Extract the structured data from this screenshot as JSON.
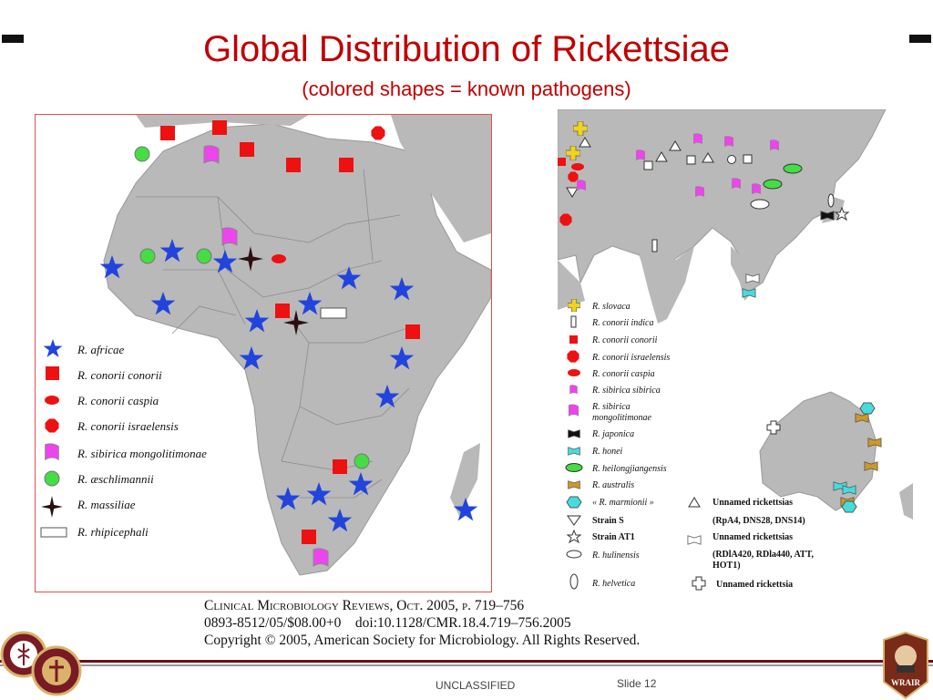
{
  "slide": {
    "title": "Global Distribution of Rickettsiae",
    "subtitle": "(colored shapes = known pathogens)",
    "classification": "UNCLASSIFIED",
    "slide_number": "Slide 12"
  },
  "colors": {
    "title": "#c00000",
    "land": "#b9b9b9",
    "africa_border": "#e05050",
    "star_blue": "#2244dd",
    "red": "#ee1111",
    "magenta": "#ee44ee",
    "green": "#44dd44",
    "cyan": "#44dddd",
    "gold": "#cc9922",
    "bottom_bar": "#6b0f1a"
  },
  "africa_map": {
    "legend": [
      {
        "label": "R. africae",
        "icon": "blue-star-icon"
      },
      {
        "label": "R. conorii conorii",
        "icon": "red-square-icon"
      },
      {
        "label": "R. conorii caspia",
        "icon": "red-oval-icon"
      },
      {
        "label": "R. conorii israelensis",
        "icon": "red-octagon-icon"
      },
      {
        "label": "R. sibirica mongolitimonae",
        "icon": "magenta-flag-icon"
      },
      {
        "label": "R. æschlimannii",
        "icon": "green-circle-icon"
      },
      {
        "label": "R. massiliae",
        "icon": "black-four-point-star-icon"
      },
      {
        "label": "R. rhipicephali",
        "icon": "white-rectangle-icon"
      }
    ]
  },
  "asia_map": {
    "legend_left": [
      {
        "label": "R. slovaca",
        "icon": "yellow-cross-icon"
      },
      {
        "label": "R. conorii indica",
        "icon": "white-bar-icon"
      },
      {
        "label": "R. conorii conorii",
        "icon": "red-square-icon"
      },
      {
        "label": "R. conorii israelensis",
        "icon": "red-octagon-icon"
      },
      {
        "label": "R. conorii caspia",
        "icon": "red-oval-icon"
      },
      {
        "label": "R. sibirica sibirica",
        "icon": "magenta-flag-icon"
      },
      {
        "label": "R. sibirica",
        "label2": "mongolitimonae",
        "icon": "magenta-flag-tall-icon"
      },
      {
        "label": "R. japonica",
        "icon": "black-bowtie-icon"
      },
      {
        "label": "R. honei",
        "icon": "cyan-bowtie-icon"
      },
      {
        "label": "R. heilongjiangensis",
        "icon": "green-oval-icon"
      },
      {
        "label": "R. australis",
        "icon": "gold-bowtie-icon"
      },
      {
        "label": "« R. marmionii »",
        "icon": "cyan-hexagon-icon"
      },
      {
        "label": "Strain S",
        "icon": "white-down-triangle-icon"
      },
      {
        "label": "Strain AT1",
        "icon": "white-star-icon"
      },
      {
        "label": "R. hulinensis",
        "icon": "white-oval-icon"
      },
      {
        "label": "R. helvetica",
        "icon": "white-tall-oval-icon"
      }
    ],
    "legend_right": [
      {
        "label": "Unnamed rickettsias",
        "sub": "(RpA4, DNS28, DNS14)",
        "icon": "white-triangle-icon"
      },
      {
        "label": "Unnamed rickettsias",
        "sub": "(RDlA420, RDla440, ATT,",
        "sub2": "HOT1)",
        "icon": "white-bowtie-icon"
      },
      {
        "label": "Unnamed rickettsia",
        "icon": "white-cross-icon"
      }
    ]
  },
  "citation": {
    "journal": "Clinical Microbiology Reviews, Oct. 2005, p. 719–756",
    "doi": "0893-8512/05/$08.00+0    doi:10.1128/CMR.18.4.719–756.2005",
    "copyright": "Copyright © 2005, American Society for Microbiology. All Rights Reserved."
  },
  "logos": {
    "left_seal": "seal-logo",
    "right_badge": "WRAIR"
  }
}
